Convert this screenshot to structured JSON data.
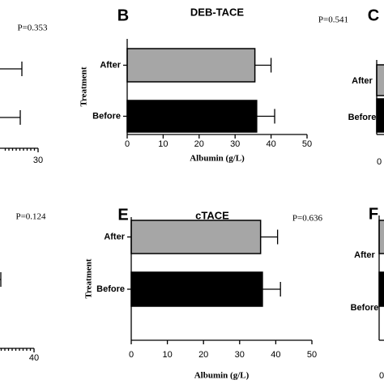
{
  "chart_data": [
    {
      "type": "partial",
      "p_value": "P=0.353",
      "xticks": [
        30
      ]
    },
    {
      "type": "barh",
      "letter": "B",
      "title": "DEB-TACE",
      "p_value": "P=0.541",
      "xlabel": "Albumin (g/L)",
      "ylabel": "Treatment",
      "categories": [
        "After",
        "Before"
      ],
      "values": [
        35.5,
        36
      ],
      "errors": [
        4.5,
        5
      ],
      "colors": [
        "#a6a6a6",
        "#000000"
      ],
      "xlim": [
        0,
        50
      ],
      "xticks": [
        0,
        10,
        20,
        30,
        40,
        50
      ]
    },
    {
      "type": "partial",
      "letter": "C",
      "categories": [
        "After",
        "Before"
      ],
      "xticks": [
        0
      ],
      "colors": [
        "#a6a6a6",
        "#000000"
      ]
    },
    {
      "type": "partial",
      "p_value": "P=0.124",
      "xticks": [
        40
      ]
    },
    {
      "type": "barh",
      "letter": "E",
      "title": "cTACE",
      "p_value": "P=0.636",
      "xlabel": "Albumin (g/L)",
      "ylabel": "Treatment",
      "categories": [
        "After",
        "Before"
      ],
      "values": [
        35.8,
        36.3
      ],
      "errors": [
        4.7,
        5
      ],
      "colors": [
        "#a6a6a6",
        "#000000"
      ],
      "xlim": [
        0,
        50
      ],
      "xticks": [
        0,
        10,
        20,
        30,
        40,
        50
      ]
    },
    {
      "type": "partial",
      "letter": "F",
      "categories": [
        "After",
        "Before"
      ],
      "xticks": [
        0
      ],
      "colors": [
        "#a6a6a6",
        "#000000"
      ]
    }
  ]
}
